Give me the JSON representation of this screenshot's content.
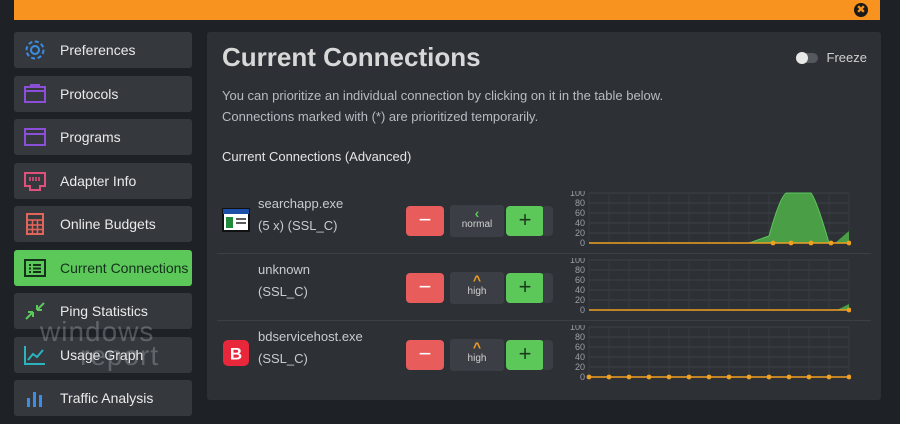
{
  "window": {
    "close_glyph": "✖"
  },
  "sidebar": {
    "items": [
      {
        "label": "Preferences",
        "icon": "gear-icon",
        "active": false
      },
      {
        "label": "Protocols",
        "icon": "protocols-icon",
        "active": false
      },
      {
        "label": "Programs",
        "icon": "window-icon",
        "active": false
      },
      {
        "label": "Adapter Info",
        "icon": "ethernet-port-icon",
        "active": false
      },
      {
        "label": "Online Budgets",
        "icon": "calculator-icon",
        "active": false
      },
      {
        "label": "Current Connections",
        "icon": "list-icon",
        "active": true
      },
      {
        "label": "Ping Statistics",
        "icon": "arrows-inward-icon",
        "active": false
      },
      {
        "label": "Usage Graph",
        "icon": "line-chart-icon",
        "active": false
      },
      {
        "label": "Traffic Analysis",
        "icon": "bar-chart-icon",
        "active": false
      }
    ]
  },
  "watermark": {
    "line1": "windows",
    "line2": "report"
  },
  "panel": {
    "title": "Current Connections",
    "freeze_label": "Freeze",
    "description_1": "You can prioritize an individual connection by clicking on it in the table below.",
    "description_2": "Connections marked with (*) are prioritized temporarily.",
    "subtitle": "Current Connections (Advanced)"
  },
  "colors": {
    "accent_orange": "#f7931e",
    "accent_green": "#5cc85a",
    "minus_red": "#e85c5c",
    "line": "#f0a020"
  },
  "connections": [
    {
      "name": "searchapp.exe",
      "meta": "(5 x) (SSL_C)",
      "priority": "normal",
      "minus": "−",
      "plus": "+",
      "chevron": "‹",
      "graph": {
        "ticks": [
          "100",
          "80",
          "60",
          "40",
          "20",
          "0"
        ],
        "spike": true
      }
    },
    {
      "name": "unknown",
      "meta": "(SSL_C)",
      "priority": "high",
      "minus": "−",
      "plus": "+",
      "chevron": "^",
      "graph": {
        "ticks": [
          "100",
          "80",
          "60",
          "40",
          "20",
          "0"
        ],
        "spike": false
      }
    },
    {
      "name": "bdservicehost.exe",
      "meta": "(SSL_C)",
      "priority": "high",
      "minus": "−",
      "plus": "+",
      "chevron": "^",
      "graph": {
        "ticks": [
          "100",
          "80",
          "60",
          "40",
          "20",
          "0"
        ],
        "spike": false
      }
    }
  ]
}
